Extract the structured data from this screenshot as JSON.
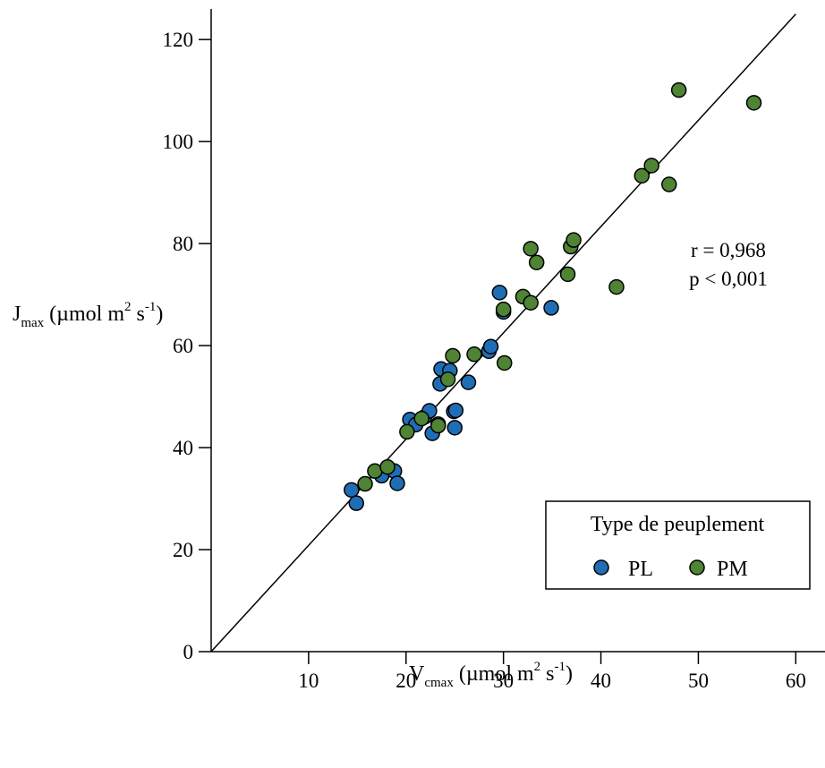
{
  "chart_data": {
    "type": "scatter",
    "xlabel": {
      "base": "V",
      "sub": "cmax",
      "unit_open": " (µmol m",
      "unit_sup1": "2",
      "unit_mid": " s",
      "unit_sup2": "-1",
      "unit_close": ")"
    },
    "ylabel": {
      "base": "J",
      "sub": "max",
      "unit_open": " (µmol m",
      "unit_sup1": "2",
      "unit_mid": " s",
      "unit_sup2": "-1",
      "unit_close": ")"
    },
    "xlim": [
      0,
      63
    ],
    "ylim": [
      0,
      126
    ],
    "x_ticks": [
      10,
      20,
      30,
      40,
      50,
      60
    ],
    "y_ticks": [
      0,
      20,
      40,
      60,
      80,
      100,
      120
    ],
    "grid": false,
    "fit_line": {
      "x": [
        0,
        60
      ],
      "y": [
        0,
        125
      ]
    },
    "annotations": {
      "r": "r = 0,968",
      "p": "p < 0,001"
    },
    "legend": {
      "title": "Type de peuplement",
      "position": "bottom-right"
    },
    "series": [
      {
        "name": "PL",
        "color": "#1f6eb5",
        "points": [
          [
            14.4,
            31.7
          ],
          [
            14.9,
            29.1
          ],
          [
            17.5,
            34.5
          ],
          [
            18.8,
            35.4
          ],
          [
            19.1,
            33.0
          ],
          [
            20.4,
            45.5
          ],
          [
            21.0,
            44.5
          ],
          [
            21.9,
            46.0
          ],
          [
            22.4,
            47.2
          ],
          [
            22.7,
            42.8
          ],
          [
            23.3,
            44.6
          ],
          [
            23.5,
            52.5
          ],
          [
            23.6,
            55.4
          ],
          [
            24.5,
            55.1
          ],
          [
            24.9,
            47.1
          ],
          [
            25.1,
            47.3
          ],
          [
            25.0,
            43.9
          ],
          [
            26.4,
            52.8
          ],
          [
            28.5,
            58.9
          ],
          [
            28.7,
            59.8
          ],
          [
            29.6,
            70.4
          ],
          [
            30.0,
            66.6
          ],
          [
            34.9,
            67.4
          ]
        ]
      },
      {
        "name": "PM",
        "color": "#4e8433",
        "points": [
          [
            15.8,
            32.9
          ],
          [
            16.8,
            35.4
          ],
          [
            18.1,
            36.2
          ],
          [
            20.1,
            43.1
          ],
          [
            21.6,
            45.7
          ],
          [
            23.3,
            44.3
          ],
          [
            24.3,
            53.4
          ],
          [
            24.8,
            58.0
          ],
          [
            27.0,
            58.3
          ],
          [
            30.1,
            56.6
          ],
          [
            30.0,
            67.1
          ],
          [
            32.0,
            69.6
          ],
          [
            32.8,
            68.4
          ],
          [
            32.8,
            79.0
          ],
          [
            33.4,
            76.3
          ],
          [
            36.6,
            74.0
          ],
          [
            36.9,
            79.4
          ],
          [
            37.2,
            80.7
          ],
          [
            41.6,
            71.5
          ],
          [
            44.2,
            93.3
          ],
          [
            45.2,
            95.3
          ],
          [
            47.0,
            91.6
          ],
          [
            48.0,
            110.1
          ],
          [
            55.7,
            107.6
          ]
        ]
      }
    ]
  }
}
